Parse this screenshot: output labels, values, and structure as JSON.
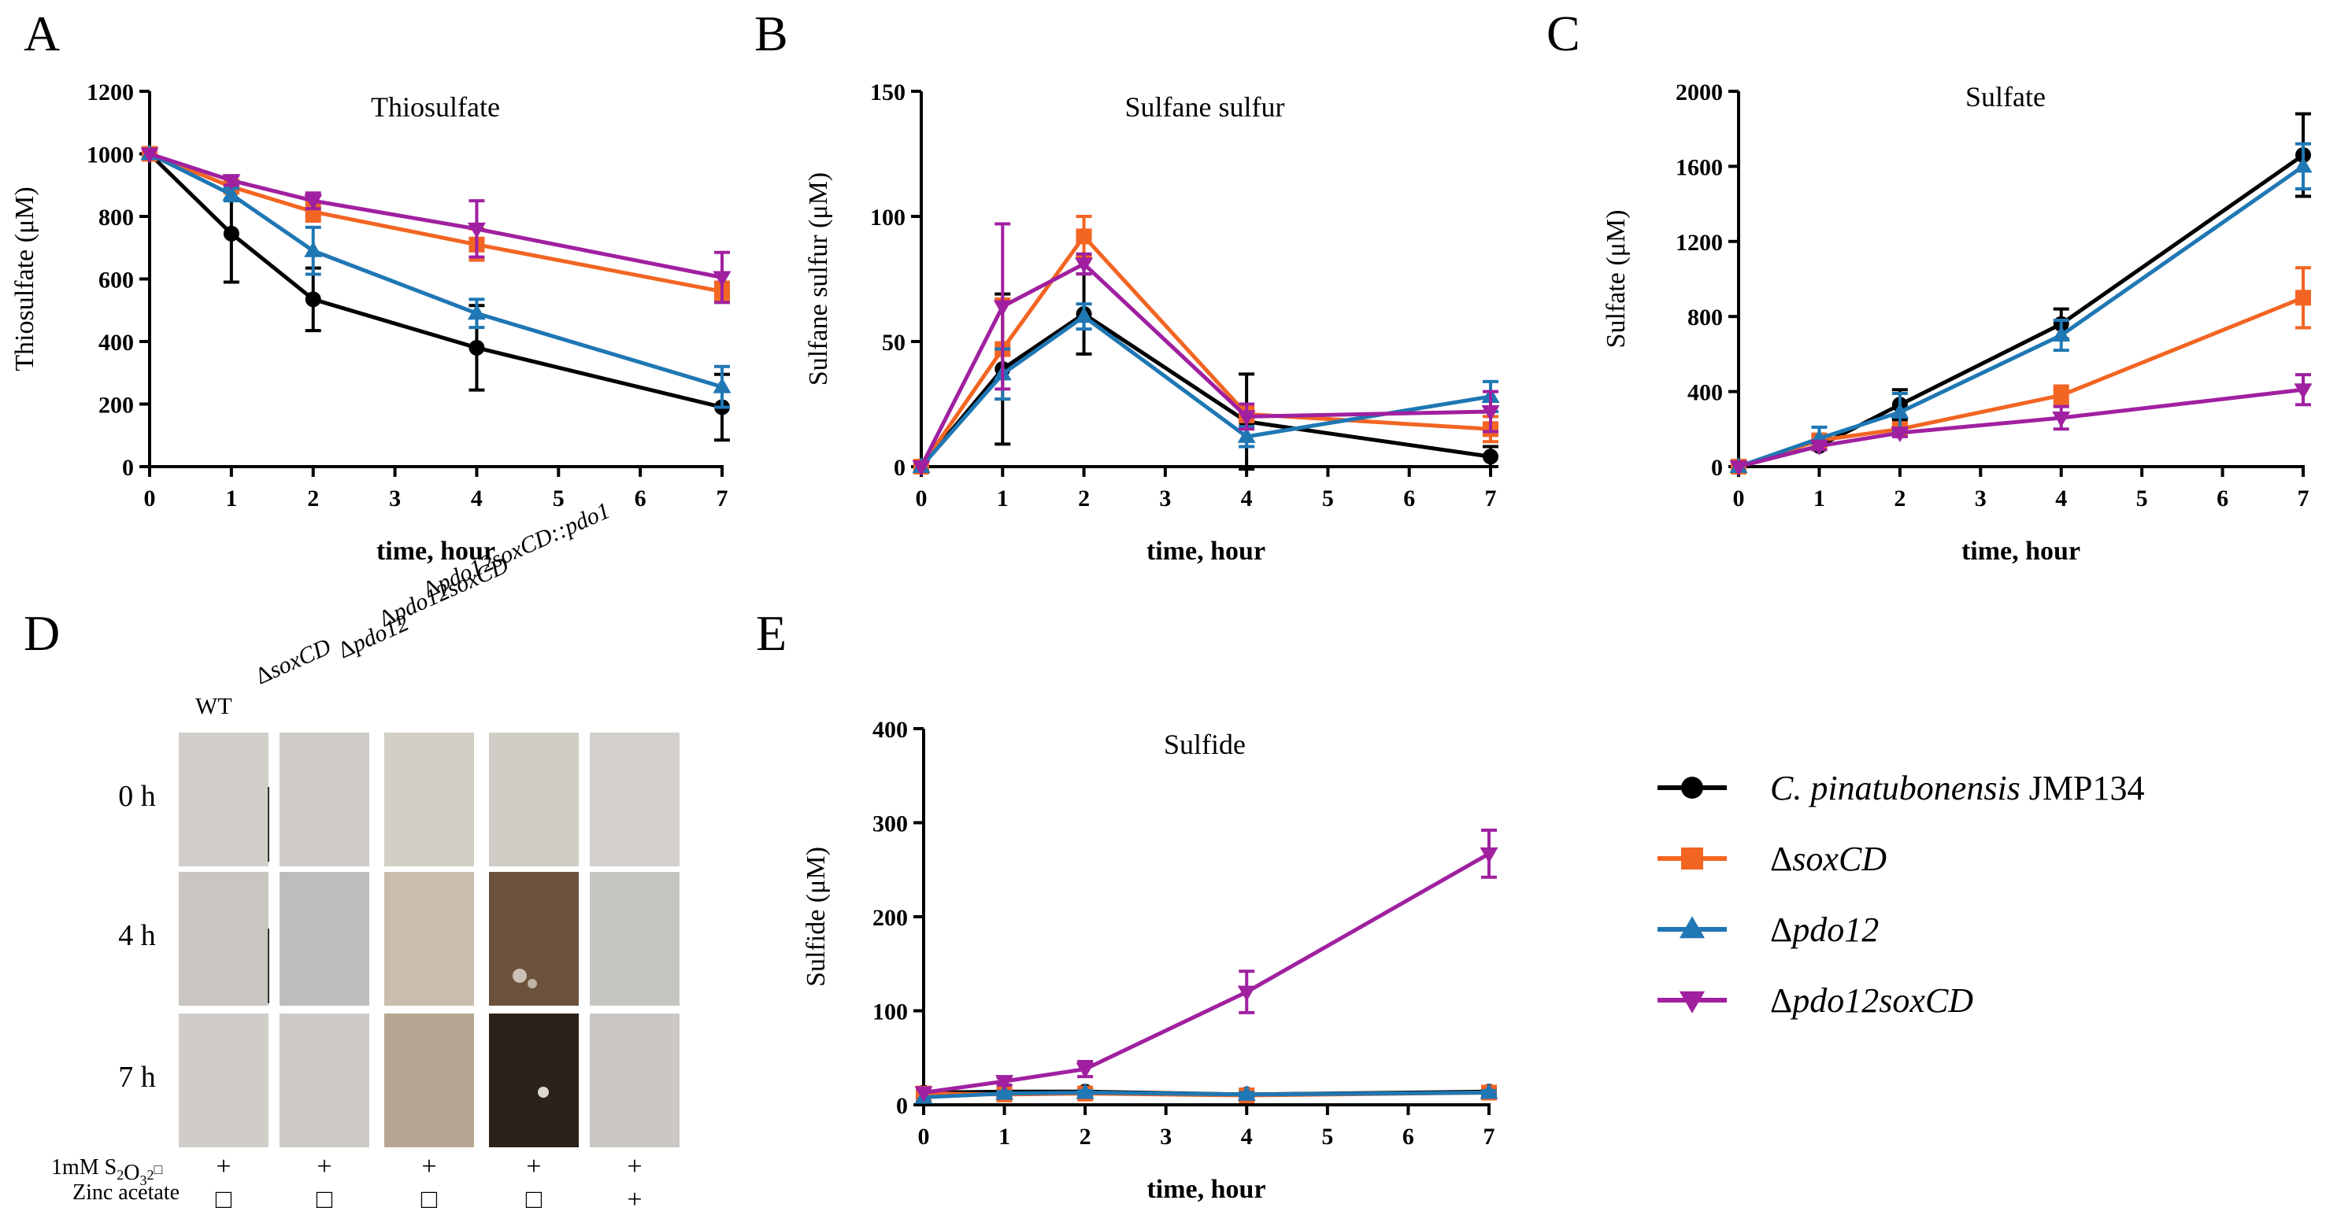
{
  "chart_data": [
    {
      "panel": "A",
      "type": "line",
      "title": "Thiosulfate",
      "xlabel": "time, hour",
      "ylabel": "Thiosulfate (μM)",
      "xlim": [
        0,
        7
      ],
      "ylim": [
        0,
        1200
      ],
      "x_ticks": [
        "0",
        "1",
        "2",
        "3",
        "4",
        "5",
        "6",
        "7"
      ],
      "y_ticks": [
        "0",
        "200",
        "400",
        "600",
        "800",
        "1000",
        "1200"
      ],
      "x": [
        0,
        1,
        2,
        4,
        7
      ],
      "series": [
        {
          "name": "C. pinatubonensis JMP134",
          "values": [
            1000,
            745,
            535,
            380,
            190
          ],
          "errors": [
            0,
            155,
            100,
            135,
            105
          ]
        },
        {
          "name": "ΔsoxCD",
          "values": [
            1000,
            895,
            815,
            710,
            560
          ],
          "errors": [
            0,
            20,
            30,
            50,
            30
          ]
        },
        {
          "name": "Δpdo12",
          "values": [
            1000,
            870,
            690,
            490,
            255
          ],
          "errors": [
            0,
            20,
            75,
            45,
            65
          ]
        },
        {
          "name": "Δpdo12soxCD",
          "values": [
            1000,
            915,
            850,
            760,
            605
          ],
          "errors": [
            0,
            15,
            25,
            90,
            80
          ]
        }
      ]
    },
    {
      "panel": "B",
      "type": "line",
      "title": "Sulfane sulfur",
      "xlabel": "time, hour",
      "ylabel": "Sulfane sulfur (μM)",
      "xlim": [
        0,
        7
      ],
      "ylim": [
        0,
        150
      ],
      "x_ticks": [
        "0",
        "1",
        "2",
        "3",
        "4",
        "5",
        "6",
        "7"
      ],
      "y_ticks": [
        "0",
        "50",
        "100",
        "150"
      ],
      "x": [
        0,
        1,
        2,
        4,
        7
      ],
      "series": [
        {
          "name": "C. pinatubonensis JMP134",
          "values": [
            0,
            39,
            61,
            18,
            4
          ],
          "errors": [
            0,
            30,
            16,
            19,
            4
          ]
        },
        {
          "name": "ΔsoxCD",
          "values": [
            0,
            47,
            92,
            21,
            15
          ],
          "errors": [
            0,
            20,
            8,
            3,
            5
          ]
        },
        {
          "name": "Δpdo12",
          "values": [
            0,
            37,
            60,
            12,
            28
          ],
          "errors": [
            0,
            10,
            5,
            4,
            6
          ]
        },
        {
          "name": "Δpdo12soxCD",
          "values": [
            0,
            64,
            81,
            20,
            22
          ],
          "errors": [
            0,
            33,
            4,
            5,
            8
          ]
        }
      ]
    },
    {
      "panel": "C",
      "type": "line",
      "title": "Sulfate",
      "xlabel": "time, hour",
      "ylabel": "Sulfate (μM)",
      "xlim": [
        0,
        7
      ],
      "ylim": [
        0,
        2000
      ],
      "x_ticks": [
        "0",
        "1",
        "2",
        "3",
        "4",
        "5",
        "6",
        "7"
      ],
      "y_ticks": [
        "0",
        "400",
        "800",
        "1200",
        "1600",
        "2000"
      ],
      "x": [
        0,
        1,
        2,
        4,
        7
      ],
      "series": [
        {
          "name": "C. pinatubonensis JMP134",
          "values": [
            0,
            110,
            330,
            760,
            1660
          ],
          "errors": [
            0,
            20,
            80,
            80,
            220
          ]
        },
        {
          "name": "ΔsoxCD",
          "values": [
            0,
            140,
            200,
            380,
            900
          ],
          "errors": [
            0,
            20,
            20,
            50,
            160
          ]
        },
        {
          "name": "Δpdo12",
          "values": [
            0,
            150,
            290,
            700,
            1600
          ],
          "errors": [
            0,
            60,
            100,
            80,
            120
          ]
        },
        {
          "name": "Δpdo12soxCD",
          "values": [
            0,
            110,
            180,
            260,
            410
          ],
          "errors": [
            0,
            20,
            20,
            60,
            80
          ]
        }
      ]
    },
    {
      "panel": "E",
      "type": "line",
      "title": "Sulfide",
      "xlabel": "time, hour",
      "ylabel": "Sulfide (μM)",
      "xlim": [
        0,
        7
      ],
      "ylim": [
        0,
        400
      ],
      "x_ticks": [
        "0",
        "1",
        "2",
        "3",
        "4",
        "5",
        "6",
        "7"
      ],
      "y_ticks": [
        "0",
        "100",
        "200",
        "300",
        "400"
      ],
      "x": [
        0,
        1,
        2,
        4,
        7
      ],
      "series": [
        {
          "name": "C. pinatubonensis JMP134",
          "values": [
            13,
            14,
            14,
            11,
            14
          ],
          "errors": [
            0,
            2,
            2,
            2,
            2
          ]
        },
        {
          "name": "ΔsoxCD",
          "values": [
            12,
            11,
            12,
            10,
            13
          ],
          "errors": [
            0,
            2,
            2,
            2,
            2
          ]
        },
        {
          "name": "Δpdo12",
          "values": [
            8,
            12,
            13,
            11,
            13
          ],
          "errors": [
            0,
            2,
            2,
            2,
            2
          ]
        },
        {
          "name": "Δpdo12soxCD",
          "values": [
            13,
            25,
            38,
            120,
            267
          ],
          "errors": [
            0,
            4,
            8,
            22,
            25
          ]
        }
      ]
    }
  ],
  "legend": {
    "entries": [
      {
        "italic": "C. pinatubonensis",
        "normal": " JMP134",
        "color": "#000000",
        "marker": "circle"
      },
      {
        "italic": "soxCD",
        "prefix": "Δ",
        "color": "#f26522",
        "marker": "square"
      },
      {
        "italic": "pdo12",
        "prefix": "Δ",
        "color": "#1f77b4",
        "marker": "triangle-up"
      },
      {
        "italic": "pdo12soxCD",
        "prefix": "Δ",
        "color": "#a020a0",
        "marker": "triangle-down"
      }
    ]
  },
  "colors": {
    "JMP134": "#000000",
    "soxCD": "#f26522",
    "pdo12": "#1f77b4",
    "pdo12soxCD": "#a020a0"
  },
  "panel_letters": [
    "A",
    "B",
    "C",
    "D",
    "E"
  ],
  "photo_panel": {
    "strains": [
      {
        "prefix": "",
        "name": "WT",
        "italic": false
      },
      {
        "prefix": "Δ",
        "name": "soxCD",
        "italic": true
      },
      {
        "prefix": "Δ",
        "name": "pdo12",
        "italic": true
      },
      {
        "prefix": "Δ",
        "name": "pdo12soxCD",
        "italic": true
      },
      {
        "prefix": "Δ",
        "name": "pdo12soxCD::pdo1",
        "italic": true
      }
    ],
    "rows": [
      "0 h",
      "4 h",
      "7 h"
    ],
    "thiosulfate_label": "1mM S",
    "thiosulfate_sub": "2",
    "thiosulfate_o": "O",
    "thiosulfate_sub2": "3",
    "thiosulfate_sup": "2",
    "thiosulfate_missing_glyph": "□",
    "zinc_label": "Zinc acetate",
    "thiosulfate_row": [
      "+",
      "+",
      "+",
      "+",
      "+"
    ],
    "zinc_row": [
      "□",
      "□",
      "□",
      "□",
      "+"
    ],
    "tile_colors": [
      [
        "#d2cec9",
        "#cfcbc6",
        "#d3cec6",
        "#d0ccc6",
        "#d3cfca"
      ],
      [
        "#c9c6c2",
        "#bebdbb",
        "#c9bdae",
        "#6a523c",
        "#c7c5c2"
      ],
      [
        "#d0ccc8",
        "#cdc9c5",
        "#b7a792",
        "#2b2219",
        "#cbc7c2"
      ]
    ]
  }
}
